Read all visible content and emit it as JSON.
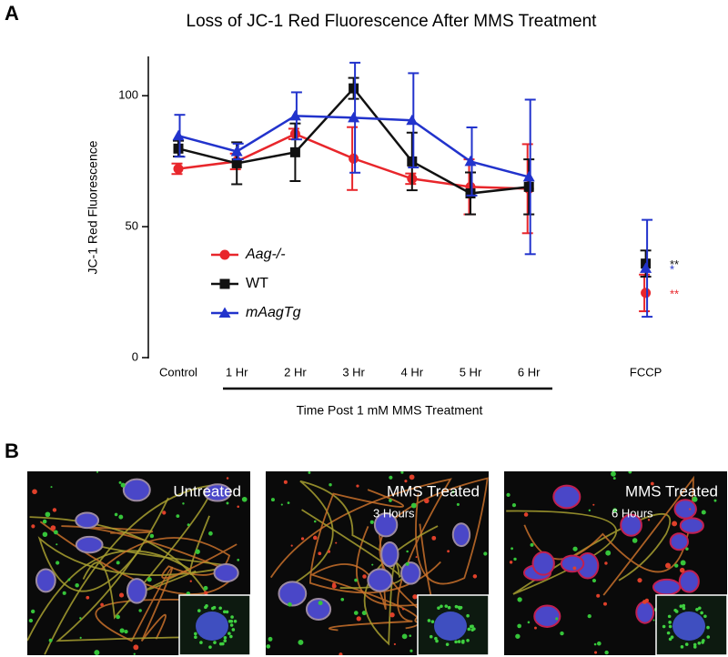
{
  "figure": {
    "panel_labels": [
      "A",
      "B"
    ],
    "images": [
      {
        "title": "Untreated"
      },
      {
        "title": "MMS Treated",
        "subtitle": "3 Hours"
      },
      {
        "title": "MMS Treated",
        "subtitle": "6 Hours"
      }
    ]
  },
  "chart_data": {
    "type": "line",
    "title": "Loss of JC-1 Red Fluorescence After MMS Treatment",
    "y_label": "JC-1 Red Fluorescence",
    "x_label": "Time Post 1 mM MMS Treatment",
    "categories": [
      "Control",
      "1 Hr",
      "2 Hr",
      "3 Hr",
      "4 Hr",
      "5 Hr",
      "6 Hr",
      null,
      "FCCP"
    ],
    "ylim": [
      0,
      115
    ],
    "yticks": [
      0,
      50,
      100
    ],
    "series": [
      {
        "name": "Aag-/-",
        "color": "#e8262b",
        "marker": "circle",
        "annotation": "**",
        "values": [
          72.1,
          74.9,
          85.4,
          76,
          68.3,
          65.2,
          64.5,
          null,
          24.7
        ],
        "errors": [
          2,
          3,
          2,
          12,
          2,
          10.5,
          17,
          null,
          7
        ]
      },
      {
        "name": "WT",
        "color": "#111111",
        "marker": "square",
        "annotation": "**",
        "values": [
          79.8,
          74.2,
          78.4,
          102.8,
          74.9,
          62.7,
          65.2,
          null,
          35.9
        ],
        "errors": [
          3,
          8,
          11,
          4,
          11,
          8,
          10.5,
          null,
          5
        ]
      },
      {
        "name": "mAagTg",
        "color": "#2233cc",
        "marker": "triangle",
        "annotation": "*",
        "values": [
          84.7,
          78.7,
          92.3,
          91.6,
          90.6,
          74.9,
          69,
          null,
          34.1
        ],
        "errors": [
          8,
          3,
          9,
          21,
          18,
          13,
          29.5,
          null,
          18.5
        ]
      }
    ]
  }
}
